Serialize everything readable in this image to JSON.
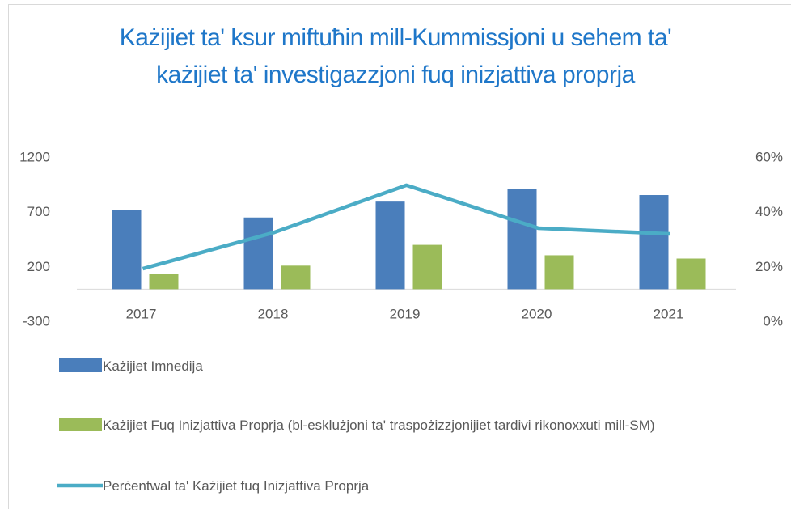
{
  "chart_data": {
    "type": "bar-line",
    "title": "Każijiet ta' ksur miftuħin mill-Kummissjoni u sehem ta' każijiet ta' investigazzjoni fuq inizjattiva proprja",
    "categories": [
      "2017",
      "2018",
      "2019",
      "2020",
      "2021"
    ],
    "series": [
      {
        "name": "Każijiet Imnedija",
        "type": "bar",
        "color": "#4a7ebb",
        "values": [
          720,
          655,
          800,
          915,
          860
        ]
      },
      {
        "name": "Każijiet Fuq Inizjattiva Proprja (bl-esklużjoni ta' traspożizzjonijiet tardivi rikonoxxuti mill-SM)",
        "type": "bar",
        "color": "#9bbb59",
        "values": [
          140,
          215,
          405,
          310,
          280
        ]
      },
      {
        "name": "Perċentwal ta' Każijiet fuq Inizjattiva Proprja",
        "type": "line",
        "axis": "y2",
        "color": "#4bacc6",
        "values": [
          19.5,
          32.8,
          50,
          34.3,
          32.2
        ]
      }
    ],
    "ylim": [
      -300,
      1200
    ],
    "yticks": [
      -300,
      200,
      700,
      1200
    ],
    "y2lim": [
      0,
      60
    ],
    "y2ticks": [
      {
        "value": 0,
        "label": "0%"
      },
      {
        "value": 20,
        "label": "20%"
      },
      {
        "value": 40,
        "label": "40%"
      },
      {
        "value": 60,
        "label": "60%"
      }
    ],
    "legend": "bottom"
  }
}
